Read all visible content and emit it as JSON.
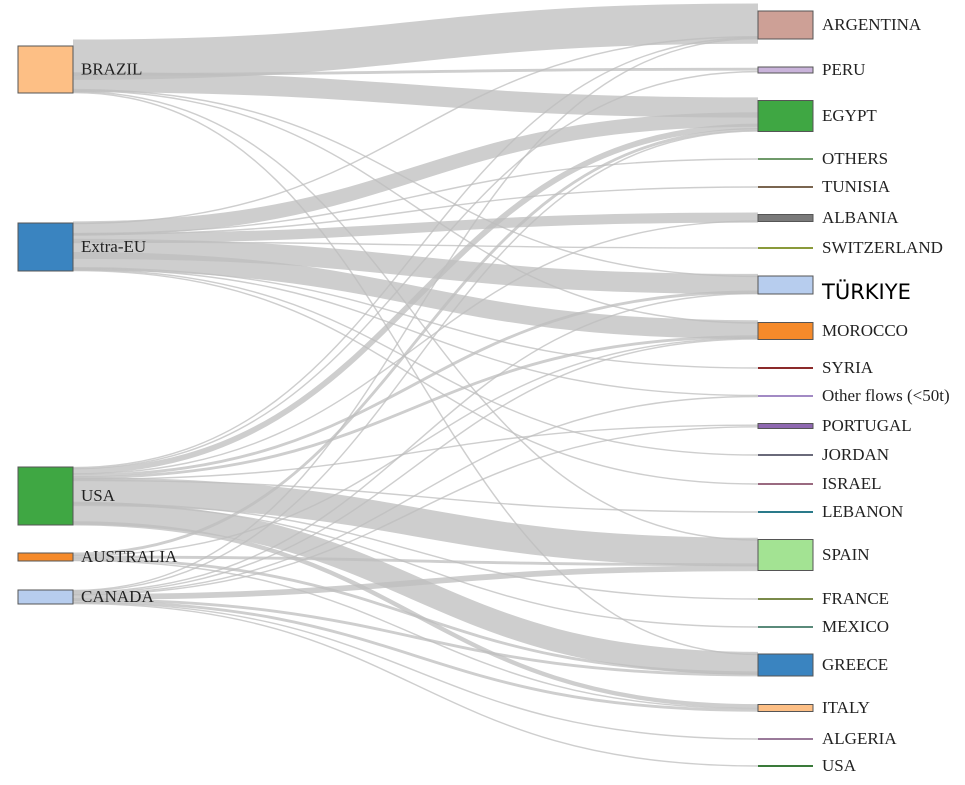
{
  "chart_data": {
    "type": "sankey",
    "sources": [
      {
        "id": "BRAZIL",
        "label": "BRAZIL",
        "color": "#fdbf85"
      },
      {
        "id": "Extra-EU",
        "label": "Extra-EU",
        "color": "#3a84c0"
      },
      {
        "id": "USA",
        "label": "USA",
        "color": "#3fa743"
      },
      {
        "id": "AUSTRALIA",
        "label": "AUSTRALIA",
        "color": "#f58a2a"
      },
      {
        "id": "CANADA",
        "label": "CANADA",
        "color": "#b7cdee"
      }
    ],
    "targets": [
      {
        "id": "ARGENTINA",
        "label": "ARGENTINA",
        "color": "#cda096"
      },
      {
        "id": "PERU",
        "label": "PERU",
        "color": "#c9b3da"
      },
      {
        "id": "EGYPT",
        "label": "EGYPT",
        "color": "#3fa743"
      },
      {
        "id": "OTHERS",
        "label": "OTHERS",
        "color": "#6f9a6a"
      },
      {
        "id": "TUNISIA",
        "label": "TUNISIA",
        "color": "#7a6550"
      },
      {
        "id": "ALBANIA",
        "label": "ALBANIA",
        "color": "#7a7a7a"
      },
      {
        "id": "SWITZERLAND",
        "label": "SWITZERLAND",
        "color": "#8a9a3a"
      },
      {
        "id": "TURKIYE",
        "label": "TÜRKIYE",
        "color": "#b7cdee"
      },
      {
        "id": "MOROCCO",
        "label": "MOROCCO",
        "color": "#f58a2a"
      },
      {
        "id": "SYRIA",
        "label": "SYRIA",
        "color": "#8b2a2a"
      },
      {
        "id": "OTHER_FLOWS",
        "label": "Other flows (<50t)",
        "color": "#a28ac4"
      },
      {
        "id": "PORTUGAL",
        "label": "PORTUGAL",
        "color": "#8e68b0"
      },
      {
        "id": "JORDAN",
        "label": "JORDAN",
        "color": "#6a6a7a"
      },
      {
        "id": "ISRAEL",
        "label": "ISRAEL",
        "color": "#9a6a80"
      },
      {
        "id": "LEBANON",
        "label": "LEBANON",
        "color": "#2a7a8a"
      },
      {
        "id": "SPAIN",
        "label": "SPAIN",
        "color": "#a3e393"
      },
      {
        "id": "FRANCE",
        "label": "FRANCE",
        "color": "#7a8a4a"
      },
      {
        "id": "MEXICO",
        "label": "MEXICO",
        "color": "#5a8a7a"
      },
      {
        "id": "GREECE",
        "label": "GREECE",
        "color": "#3a84c0"
      },
      {
        "id": "ITALY",
        "label": "ITALY",
        "color": "#fdbf85"
      },
      {
        "id": "ALGERIA",
        "label": "ALGERIA",
        "color": "#9a7a9a"
      },
      {
        "id": "USA_DEST",
        "label": "USA",
        "color": "#3a7a3a"
      }
    ],
    "flows": [
      {
        "source": "BRAZIL",
        "target": "ARGENTINA",
        "value": 28
      },
      {
        "source": "BRAZIL",
        "target": "PERU",
        "value": 2
      },
      {
        "source": "BRAZIL",
        "target": "EGYPT",
        "value": 14
      },
      {
        "source": "BRAZIL",
        "target": "TURKIYE",
        "value": 1
      },
      {
        "source": "BRAZIL",
        "target": "MOROCCO",
        "value": 1
      },
      {
        "source": "BRAZIL",
        "target": "SPAIN",
        "value": 1
      },
      {
        "source": "BRAZIL",
        "target": "GREECE",
        "value": 1
      },
      {
        "source": "Extra-EU",
        "target": "ARGENTINA",
        "value": 1
      },
      {
        "source": "Extra-EU",
        "target": "EGYPT",
        "value": 10
      },
      {
        "source": "Extra-EU",
        "target": "OTHERS",
        "value": 1
      },
      {
        "source": "Extra-EU",
        "target": "TUNISIA",
        "value": 1
      },
      {
        "source": "Extra-EU",
        "target": "ALBANIA",
        "value": 7
      },
      {
        "source": "Extra-EU",
        "target": "SWITZERLAND",
        "value": 1
      },
      {
        "source": "Extra-EU",
        "target": "TURKIYE",
        "value": 14
      },
      {
        "source": "Extra-EU",
        "target": "MOROCCO",
        "value": 13
      },
      {
        "source": "Extra-EU",
        "target": "SYRIA",
        "value": 1
      },
      {
        "source": "Extra-EU",
        "target": "OTHER_FLOWS",
        "value": 1
      },
      {
        "source": "Extra-EU",
        "target": "JORDAN",
        "value": 1
      },
      {
        "source": "Extra-EU",
        "target": "ISRAEL",
        "value": 1
      },
      {
        "source": "USA",
        "target": "ARGENTINA",
        "value": 1
      },
      {
        "source": "USA",
        "target": "PERU",
        "value": 1
      },
      {
        "source": "USA",
        "target": "EGYPT",
        "value": 4
      },
      {
        "source": "USA",
        "target": "ALBANIA",
        "value": 1
      },
      {
        "source": "USA",
        "target": "TURKIYE",
        "value": 2
      },
      {
        "source": "USA",
        "target": "MOROCCO",
        "value": 2
      },
      {
        "source": "USA",
        "target": "PORTUGAL",
        "value": 1
      },
      {
        "source": "USA",
        "target": "LEBANON",
        "value": 1
      },
      {
        "source": "USA",
        "target": "SPAIN",
        "value": 20
      },
      {
        "source": "USA",
        "target": "FRANCE",
        "value": 1
      },
      {
        "source": "USA",
        "target": "MEXICO",
        "value": 1
      },
      {
        "source": "USA",
        "target": "GREECE",
        "value": 16
      },
      {
        "source": "USA",
        "target": "ITALY",
        "value": 3
      },
      {
        "source": "AUSTRALIA",
        "target": "EGYPT",
        "value": 2
      },
      {
        "source": "AUSTRALIA",
        "target": "MOROCCO",
        "value": 1
      },
      {
        "source": "AUSTRALIA",
        "target": "SPAIN",
        "value": 2
      },
      {
        "source": "AUSTRALIA",
        "target": "GREECE",
        "value": 2
      },
      {
        "source": "AUSTRALIA",
        "target": "ITALY",
        "value": 1
      },
      {
        "source": "CANADA",
        "target": "ARGENTINA",
        "value": 1
      },
      {
        "source": "CANADA",
        "target": "EGYPT",
        "value": 1
      },
      {
        "source": "CANADA",
        "target": "TURKIYE",
        "value": 1
      },
      {
        "source": "CANADA",
        "target": "MOROCCO",
        "value": 1
      },
      {
        "source": "CANADA",
        "target": "OTHER_FLOWS",
        "value": 1
      },
      {
        "source": "CANADA",
        "target": "PORTUGAL",
        "value": 1
      },
      {
        "source": "CANADA",
        "target": "SPAIN",
        "value": 4
      },
      {
        "source": "CANADA",
        "target": "GREECE",
        "value": 2
      },
      {
        "source": "CANADA",
        "target": "ITALY",
        "value": 2
      },
      {
        "source": "CANADA",
        "target": "ALGERIA",
        "value": 1
      },
      {
        "source": "CANADA",
        "target": "USA_DEST",
        "value": 1
      }
    ]
  }
}
